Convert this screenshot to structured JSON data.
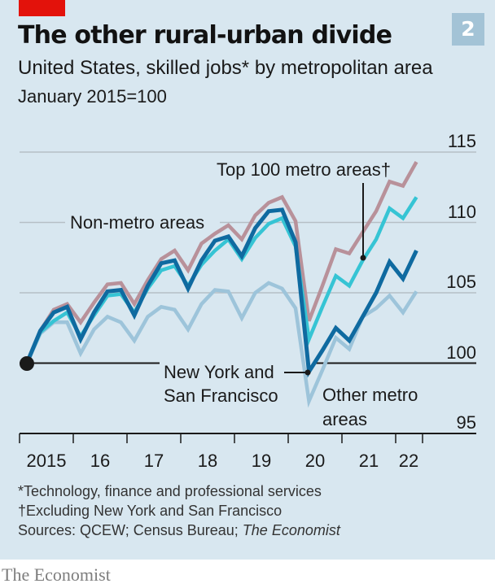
{
  "header": {
    "title": "The other rural-urban divide",
    "subtitle": "United States, skilled jobs* by metropolitan area",
    "unit": "January 2015=100",
    "chart_number": "2",
    "accent_color": "#e3120b"
  },
  "chart_data": {
    "type": "line",
    "title": "The other rural-urban divide",
    "subtitle": "United States, skilled jobs* by metropolitan area",
    "ylabel": "January 2015=100",
    "xlabel": "",
    "frequency": "quarterly",
    "x_start": "2015 Q1",
    "x_tick_labels": [
      "2015",
      "16",
      "17",
      "18",
      "19",
      "20",
      "21",
      "22"
    ],
    "y_ticks": [
      95,
      100,
      105,
      110,
      115
    ],
    "ylim": [
      95,
      115
    ],
    "xlim": [
      "2015 Q1",
      "2022 Q4"
    ],
    "grid": true,
    "y_axis_side": "right",
    "x": [
      "2015Q1",
      "2015Q2",
      "2015Q3",
      "2015Q4",
      "2016Q1",
      "2016Q2",
      "2016Q3",
      "2016Q4",
      "2017Q1",
      "2017Q2",
      "2017Q3",
      "2017Q4",
      "2018Q1",
      "2018Q2",
      "2018Q3",
      "2018Q4",
      "2019Q1",
      "2019Q2",
      "2019Q3",
      "2019Q4",
      "2020Q1",
      "2020Q2",
      "2020Q3",
      "2020Q4",
      "2021Q1",
      "2021Q2",
      "2021Q3",
      "2021Q4",
      "2022Q1",
      "2022Q2"
    ],
    "series": [
      {
        "name": "Other metro areas",
        "color": "#9dc4da",
        "values": [
          100,
          102.1,
          102.9,
          102.9,
          100.7,
          102.4,
          103.3,
          102.9,
          101.6,
          103.3,
          104.0,
          103.8,
          102.4,
          104.2,
          105.2,
          105.1,
          103.2,
          105.0,
          105.7,
          105.3,
          103.9,
          97.3,
          99.5,
          101.8,
          101.0,
          103.3,
          103.9,
          104.8,
          103.6,
          105.1
        ]
      },
      {
        "name": "Non-metro areas",
        "color": "#b8919a",
        "values": [
          100,
          102.3,
          103.8,
          104.2,
          102.9,
          104.3,
          105.6,
          105.7,
          104.2,
          105.9,
          107.4,
          108.0,
          106.6,
          108.5,
          109.2,
          109.8,
          108.8,
          110.5,
          111.4,
          111.8,
          110.1,
          103.0,
          105.5,
          108.1,
          107.8,
          109.3,
          110.8,
          112.9,
          112.6,
          114.3
        ]
      },
      {
        "name": "Top 100 metro areas†",
        "color": "#36c4d4",
        "values": [
          100,
          102.2,
          103.0,
          103.6,
          101.9,
          103.4,
          104.8,
          104.9,
          103.6,
          105.3,
          106.6,
          106.9,
          105.5,
          107.0,
          108.0,
          108.8,
          107.4,
          108.9,
          109.9,
          110.3,
          108.3,
          101.7,
          104.0,
          106.2,
          105.5,
          107.3,
          108.8,
          111.0,
          110.3,
          111.8
        ]
      },
      {
        "name": "New York and San Francisco",
        "color": "#0f6aa0",
        "values": [
          100,
          102.3,
          103.6,
          104.0,
          101.7,
          103.6,
          105.1,
          105.2,
          103.4,
          105.5,
          107.1,
          107.3,
          105.3,
          107.3,
          108.7,
          109.0,
          107.6,
          109.6,
          110.8,
          110.9,
          108.6,
          99.4,
          100.9,
          102.5,
          101.6,
          103.3,
          105.0,
          107.2,
          106.0,
          108.0
        ]
      }
    ],
    "annotations": [
      {
        "text": "Non-metro areas",
        "series": "Non-metro areas"
      },
      {
        "text": "Top 100 metro areas†",
        "series": "Top 100 metro areas†"
      },
      {
        "text": "New York and San Francisco",
        "series": "New York and San Francisco",
        "lines": [
          "New York and",
          "San Francisco"
        ]
      },
      {
        "text": "Other metro areas",
        "series": "Other metro areas",
        "lines": [
          "Other metro",
          "areas"
        ]
      }
    ]
  },
  "labels": {
    "y_ticks": [
      "115",
      "110",
      "105",
      "100",
      "95"
    ],
    "x_ticks": [
      "2015",
      "16",
      "17",
      "18",
      "19",
      "20",
      "21",
      "22"
    ],
    "annot_nonmetro": "Non-metro areas",
    "annot_top100": "Top 100 metro areas†",
    "annot_nysf_1": "New York and",
    "annot_nysf_2": "San Francisco",
    "annot_other_1": "Other metro",
    "annot_other_2": "areas"
  },
  "footer": {
    "note1": "*Technology, finance and professional services",
    "note2": "†Excluding New York and San Francisco",
    "sources_prefix": "Sources: QCEW; Census Bureau; ",
    "sources_italic": "The Economist",
    "brand": "The Economist"
  }
}
